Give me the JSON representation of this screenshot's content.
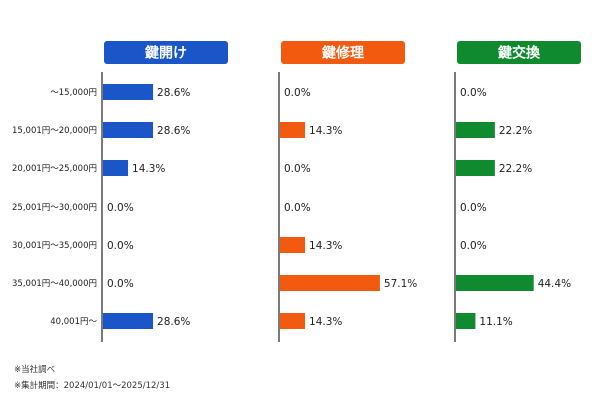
{
  "chart_data": {
    "type": "bar",
    "orientation": "horizontal",
    "categories": [
      "～15,000円",
      "15,001円～20,000円",
      "20,001円～25,000円",
      "25,001円～30,000円",
      "30,001円～35,000円",
      "35,001円～40,000円",
      "40,001円～"
    ],
    "value_unit": "%",
    "xlim": [
      0,
      100
    ],
    "grid": false,
    "panels": [
      {
        "title": "鍵開け",
        "color": "#1a56c8",
        "values": [
          28.6,
          28.6,
          14.3,
          0.0,
          0.0,
          0.0,
          28.6
        ],
        "labels": [
          "28.6%",
          "28.6%",
          "14.3%",
          "0.0%",
          "0.0%",
          "0.0%",
          "28.6%"
        ]
      },
      {
        "title": "鍵修理",
        "color": "#f25a0f",
        "values": [
          0.0,
          14.3,
          0.0,
          0.0,
          14.3,
          57.1,
          14.3
        ],
        "labels": [
          "0.0%",
          "14.3%",
          "0.0%",
          "0.0%",
          "14.3%",
          "57.1%",
          "14.3%"
        ]
      },
      {
        "title": "鍵交換",
        "color": "#0f8a2e",
        "values": [
          0.0,
          22.2,
          22.2,
          0.0,
          0.0,
          44.4,
          11.1
        ],
        "labels": [
          "0.0%",
          "22.2%",
          "22.2%",
          "0.0%",
          "0.0%",
          "44.4%",
          "11.1%"
        ]
      }
    ]
  },
  "footnotes": {
    "source": "※当社調べ",
    "period": "※集計期間：2024/01/01～2025/12/31"
  }
}
